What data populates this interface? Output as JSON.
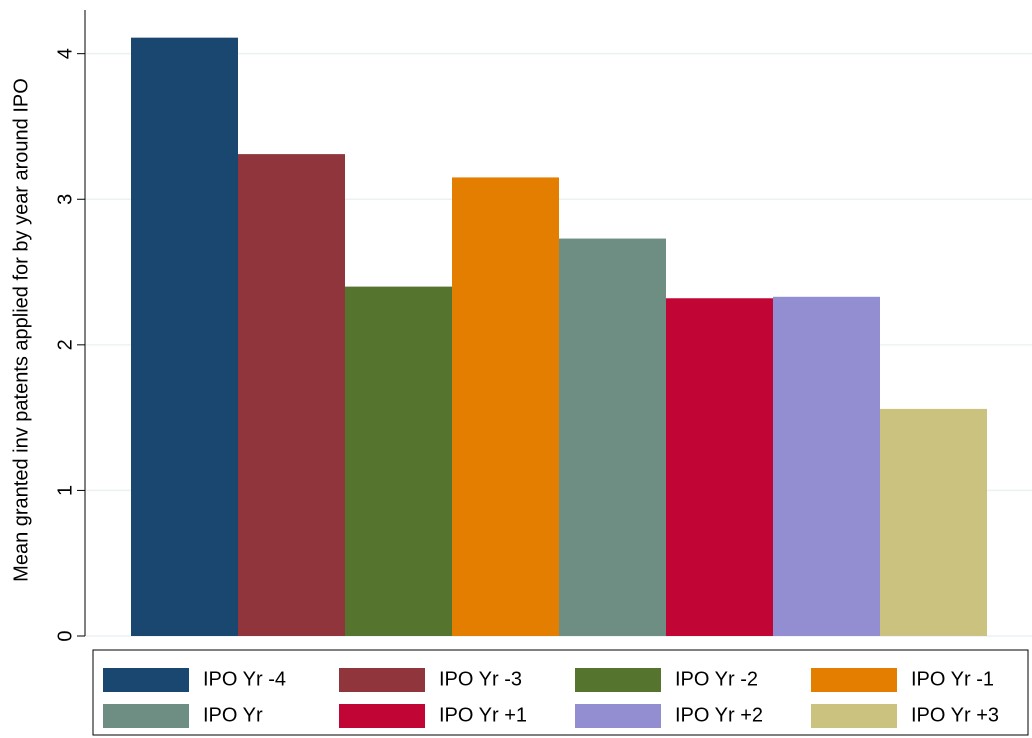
{
  "chart_data": {
    "type": "bar",
    "y_label": "Mean granted inv patents applied for by year around IPO",
    "ylim": [
      0,
      4.3
    ],
    "yticks": [
      0,
      1,
      2,
      3,
      4
    ],
    "grid": true,
    "series": [
      {
        "name": "IPO Yr -4",
        "color": "#1a476f",
        "values": [
          4.11
        ]
      },
      {
        "name": "IPO Yr -3",
        "color": "#90353b",
        "values": [
          3.31
        ]
      },
      {
        "name": "IPO Yr -2",
        "color": "#55752f",
        "values": [
          2.4
        ]
      },
      {
        "name": "IPO Yr -1",
        "color": "#e37e00",
        "values": [
          3.15
        ]
      },
      {
        "name": "IPO Yr",
        "color": "#6e8e84",
        "values": [
          2.73
        ]
      },
      {
        "name": "IPO Yr +1",
        "color": "#c10534",
        "values": [
          2.32
        ]
      },
      {
        "name": "IPO Yr +2",
        "color": "#938dd2",
        "values": [
          2.33
        ]
      },
      {
        "name": "IPO Yr +3",
        "color": "#cac27e",
        "values": [
          1.56
        ]
      }
    ]
  }
}
